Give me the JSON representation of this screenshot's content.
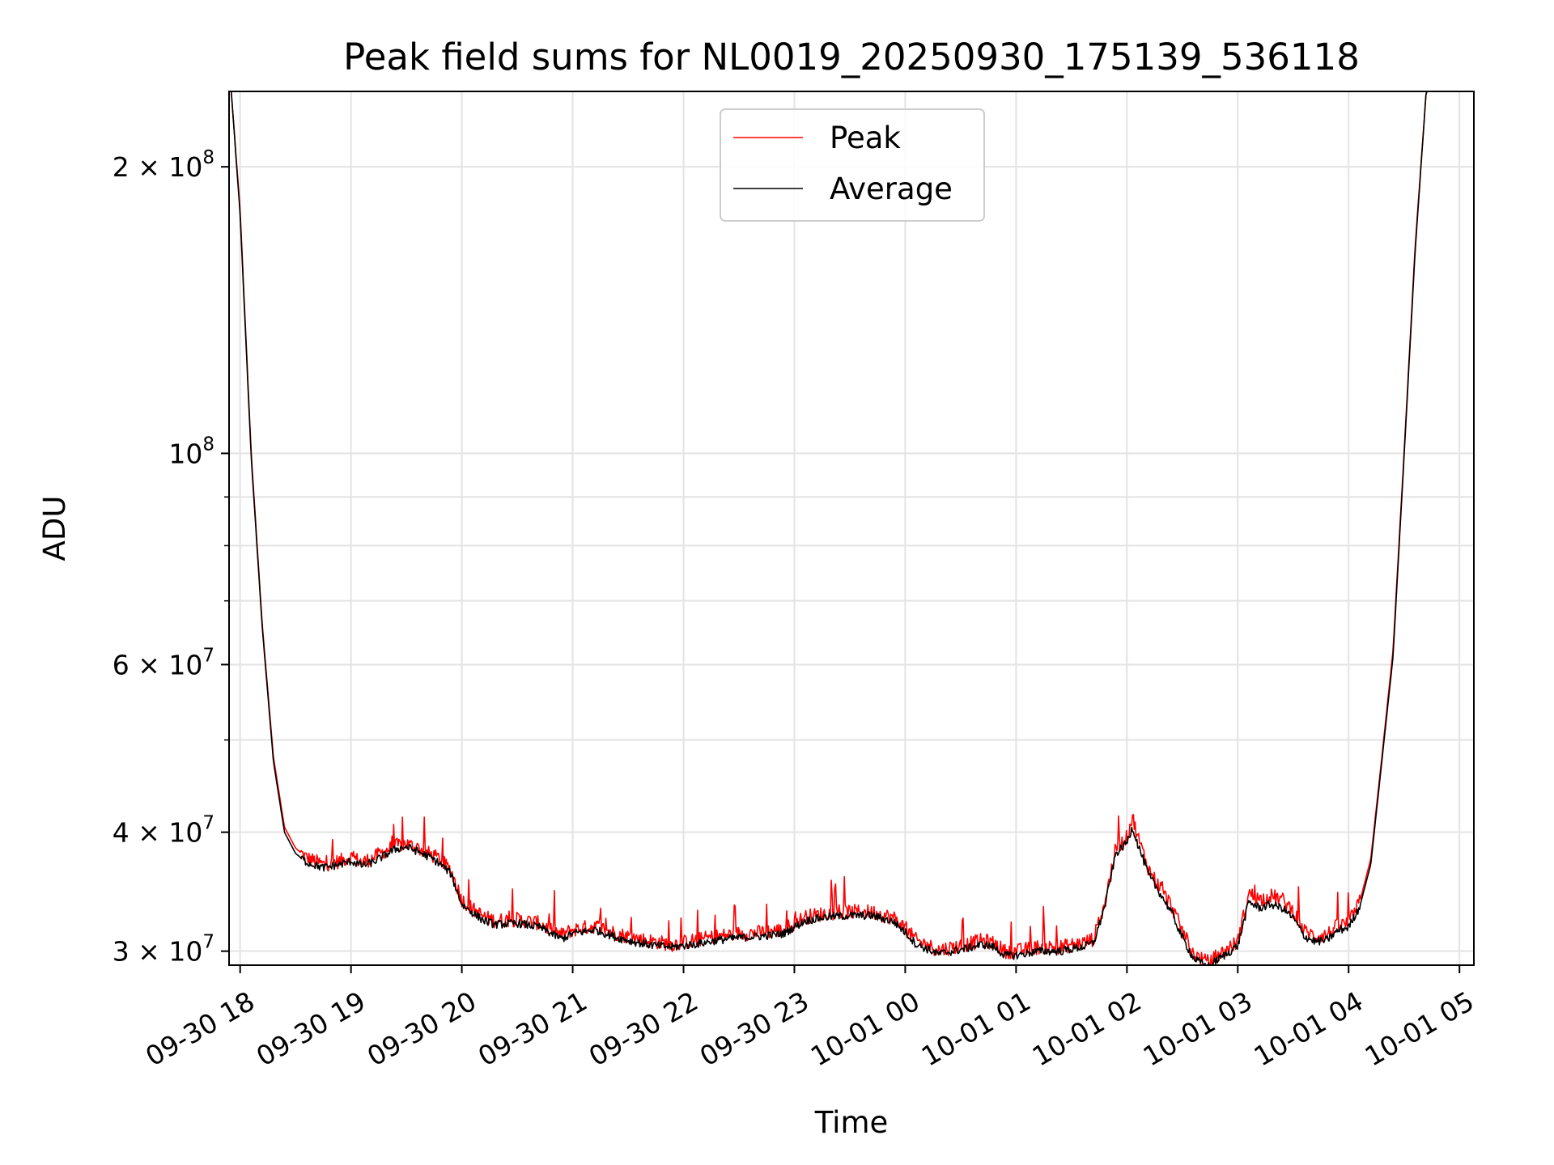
{
  "chart_data": {
    "type": "line",
    "title": "Peak field sums for NL0019_20250930_175139_536118",
    "xlabel": "Time",
    "ylabel": "ADU",
    "yscale": "log",
    "ylim": [
      29000000,
      240000000
    ],
    "xlim_hours": [
      17.9,
      29.13
    ],
    "grid": true,
    "legend_position": "upper center",
    "x_ticks": [
      {
        "hour": 18,
        "label": "09-30 18"
      },
      {
        "hour": 19,
        "label": "09-30 19"
      },
      {
        "hour": 20,
        "label": "09-30 20"
      },
      {
        "hour": 21,
        "label": "09-30 21"
      },
      {
        "hour": 22,
        "label": "09-30 22"
      },
      {
        "hour": 23,
        "label": "09-30 23"
      },
      {
        "hour": 24,
        "label": "10-01 00"
      },
      {
        "hour": 25,
        "label": "10-01 01"
      },
      {
        "hour": 26,
        "label": "10-01 02"
      },
      {
        "hour": 27,
        "label": "10-01 03"
      },
      {
        "hour": 28,
        "label": "10-01 04"
      },
      {
        "hour": 29,
        "label": "10-01 05"
      }
    ],
    "y_ticks": [
      {
        "value": 30000000,
        "base": "3 × 10",
        "exp": "7"
      },
      {
        "value": 40000000,
        "base": "4 × 10",
        "exp": "7"
      },
      {
        "value": 60000000,
        "base": "6 × 10",
        "exp": "7"
      },
      {
        "value": 100000000,
        "base": "10",
        "exp": "8"
      },
      {
        "value": 200000000,
        "base": "2 × 10",
        "exp": "8"
      }
    ],
    "y_minor_ticks": [
      50000000,
      70000000,
      80000000,
      90000000
    ],
    "series": [
      {
        "name": "Peak",
        "color": "#ff0000",
        "x": [
          17.92,
          18.0,
          18.1,
          18.2,
          18.3,
          18.4,
          18.5,
          18.6,
          18.75,
          18.9,
          19.0,
          19.1,
          19.2,
          19.3,
          19.4,
          19.5,
          19.6,
          19.7,
          19.8,
          19.9,
          20.0,
          20.1,
          20.2,
          20.3,
          20.5,
          20.7,
          20.9,
          21.0,
          21.2,
          21.4,
          21.6,
          21.75,
          21.9,
          22.1,
          22.3,
          22.5,
          22.7,
          22.9,
          23.1,
          23.3,
          23.5,
          23.7,
          23.9,
          24.0,
          24.1,
          24.3,
          24.5,
          24.7,
          24.8,
          24.9,
          25.0,
          25.2,
          25.4,
          25.6,
          25.7,
          25.8,
          25.9,
          26.0,
          26.05,
          26.1,
          26.2,
          26.3,
          26.4,
          26.5,
          26.6,
          26.7,
          26.75,
          26.8,
          26.9,
          27.0,
          27.1,
          27.2,
          27.3,
          27.4,
          27.5,
          27.6,
          27.7,
          27.8,
          27.9,
          28.0,
          28.1,
          28.2,
          28.3,
          28.4,
          28.5,
          28.6,
          28.7,
          28.8,
          28.9,
          28.95
        ],
        "values": [
          240000000,
          180000000,
          100000000,
          66000000,
          48000000,
          40500000,
          38500000,
          37600000,
          37000000,
          37300000,
          37700000,
          37200000,
          37600000,
          38200000,
          38700000,
          38900000,
          38500000,
          38000000,
          37500000,
          36500000,
          34000000,
          33200000,
          32600000,
          32300000,
          32400000,
          32100000,
          31200000,
          31600000,
          31900000,
          31300000,
          30900000,
          30700000,
          30500000,
          30800000,
          31100000,
          31300000,
          31400000,
          31600000,
          32600000,
          32900000,
          33000000,
          33000000,
          32500000,
          31700000,
          30800000,
          30100000,
          30400000,
          30800000,
          30600000,
          30000000,
          30000000,
          30300000,
          30300000,
          30600000,
          30900000,
          33800000,
          38500000,
          39500000,
          41500000,
          39500000,
          36500000,
          35000000,
          33500000,
          31500000,
          29800000,
          29300000,
          29200000,
          29600000,
          30100000,
          30700000,
          34500000,
          34000000,
          34300000,
          34000000,
          33100000,
          31500000,
          31100000,
          31200000,
          31900000,
          32100000,
          33800000,
          37500000,
          48000000,
          62000000,
          100000000,
          165000000,
          240000000,
          240000000,
          240000000,
          240000000
        ]
      },
      {
        "name": "Average",
        "color": "#000000",
        "x": [
          17.92,
          18.0,
          18.1,
          18.2,
          18.3,
          18.4,
          18.5,
          18.6,
          18.75,
          18.9,
          19.0,
          19.1,
          19.2,
          19.3,
          19.4,
          19.5,
          19.6,
          19.7,
          19.8,
          19.9,
          20.0,
          20.1,
          20.2,
          20.3,
          20.5,
          20.7,
          20.9,
          21.0,
          21.2,
          21.4,
          21.6,
          21.75,
          21.9,
          22.1,
          22.3,
          22.5,
          22.7,
          22.9,
          23.1,
          23.3,
          23.5,
          23.7,
          23.9,
          24.0,
          24.1,
          24.3,
          24.5,
          24.7,
          24.8,
          24.9,
          25.0,
          25.2,
          25.4,
          25.6,
          25.7,
          25.8,
          25.9,
          26.0,
          26.05,
          26.1,
          26.2,
          26.3,
          26.4,
          26.5,
          26.6,
          26.7,
          26.75,
          26.8,
          26.9,
          27.0,
          27.1,
          27.2,
          27.3,
          27.4,
          27.5,
          27.6,
          27.7,
          27.8,
          27.9,
          28.0,
          28.1,
          28.2,
          28.3,
          28.4,
          28.5,
          28.6,
          28.7,
          28.8,
          28.9,
          28.95
        ],
        "values": [
          240000000,
          178000000,
          99000000,
          65500000,
          47500000,
          40000000,
          38000000,
          37200000,
          36700000,
          37000000,
          37300000,
          36900000,
          37200000,
          37800000,
          38400000,
          38600000,
          38200000,
          37700000,
          37100000,
          36200000,
          33600000,
          32900000,
          32300000,
          32000000,
          32100000,
          31800000,
          30900000,
          31300000,
          31600000,
          31000000,
          30600000,
          30400000,
          30300000,
          30500000,
          30800000,
          31000000,
          31100000,
          31300000,
          32300000,
          32600000,
          32700000,
          32700000,
          32200000,
          31400000,
          30500000,
          29800000,
          30100000,
          30500000,
          30300000,
          29700000,
          29700000,
          30000000,
          30000000,
          30300000,
          30600000,
          33400000,
          38000000,
          39000000,
          40500000,
          38800000,
          36000000,
          34500000,
          33000000,
          31000000,
          29500000,
          29000000,
          28900000,
          29300000,
          29800000,
          30400000,
          33800000,
          33300000,
          33600000,
          33300000,
          32500000,
          31100000,
          30700000,
          30800000,
          31500000,
          31800000,
          33400000,
          37000000,
          47500000,
          61000000,
          99000000,
          163000000,
          240000000,
          240000000,
          240000000,
          240000000
        ]
      }
    ]
  }
}
